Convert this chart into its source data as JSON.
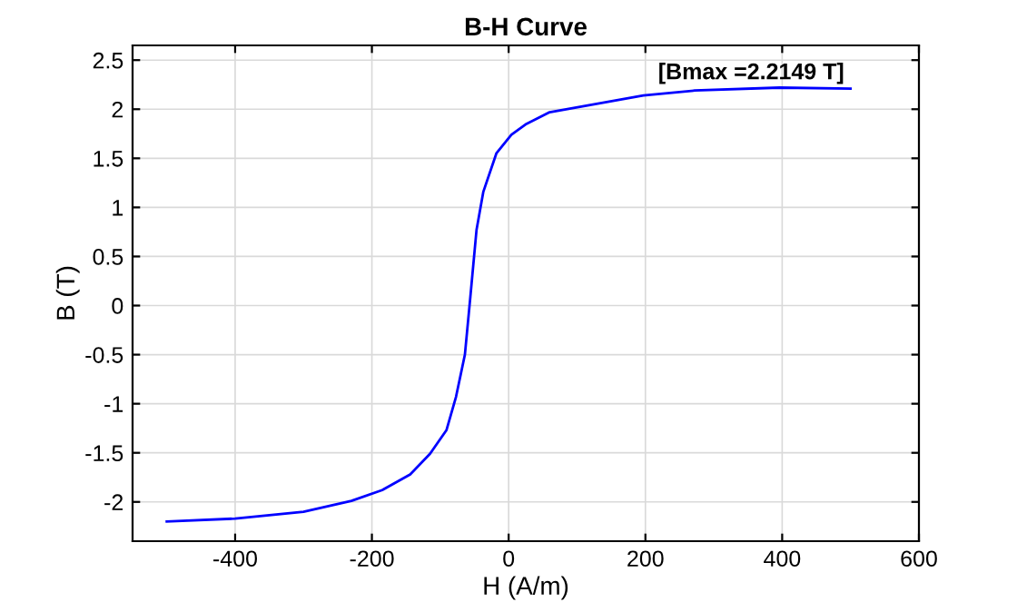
{
  "chart_data": {
    "type": "line",
    "title": "B-H Curve",
    "xlabel": "H (A/m)",
    "ylabel": "B (T)",
    "x": [
      -500,
      -400,
      -300,
      -230,
      -185,
      -144,
      -115,
      -91,
      -77,
      -64,
      -56,
      -47,
      -37,
      -18,
      4,
      26,
      60,
      197,
      272,
      396,
      500
    ],
    "series": [
      {
        "color": "#0000ff",
        "values": [
          -2.2,
          -2.17,
          -2.1,
          -1.99,
          -1.88,
          -1.72,
          -1.51,
          -1.27,
          -0.93,
          -0.5,
          0.09,
          0.77,
          1.16,
          1.55,
          1.74,
          1.85,
          1.97,
          2.14,
          2.19,
          2.22,
          2.21
        ]
      }
    ],
    "xlim": [
      -550,
      600
    ],
    "ylim": [
      -2.4,
      2.65
    ],
    "xticks": [
      -400,
      -200,
      0,
      200,
      400,
      600
    ],
    "yticks": [
      -2,
      -1.5,
      -1,
      -0.5,
      0,
      0.5,
      1,
      1.5,
      2,
      2.5
    ],
    "grid": true,
    "legend": false,
    "marker": "none",
    "line_style": "solid",
    "annotations": [
      "[Bmax =2.2149 T]"
    ]
  }
}
